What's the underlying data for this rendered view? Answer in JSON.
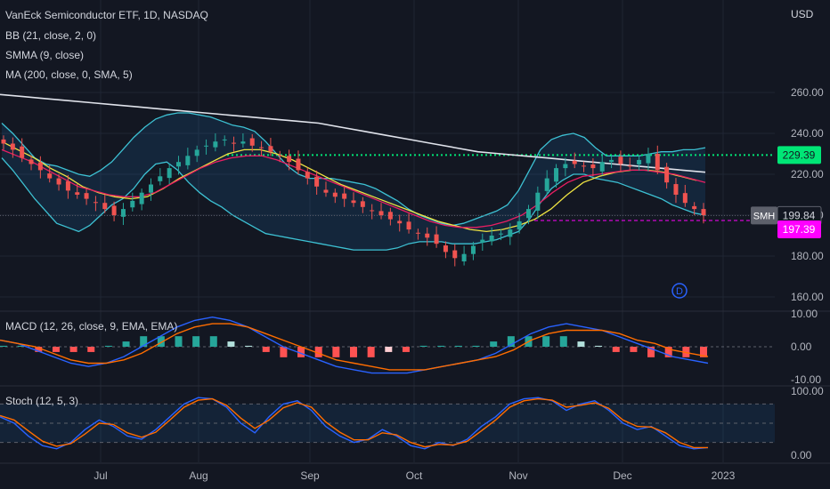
{
  "header": {
    "symbol_title": "VanEck Semiconductor ETF, 1D, NASDAQ",
    "currency": "USD"
  },
  "indicators": {
    "bb": "BB (21, close, 2, 0)",
    "smma": "SMMA (9, close)",
    "ma": "MA (200, close, 0, SMA, 5)",
    "macd": "MACD (12, 26, close, 9, EMA, EMA)",
    "stoch": "Stoch (12, 5, 3)"
  },
  "price_axis": {
    "ticks": [
      "260.00",
      "240.00",
      "220.00",
      "200.00",
      "180.00",
      "160.00"
    ],
    "tick_values": [
      260,
      240,
      220,
      200,
      180,
      160
    ]
  },
  "macd_axis": {
    "ticks": [
      "10.00",
      "0.00",
      "-10.00"
    ],
    "tick_values": [
      10,
      0,
      -10
    ]
  },
  "stoch_axis": {
    "ticks": [
      "100.00",
      "0.00"
    ],
    "tick_values": [
      100,
      0
    ]
  },
  "time_axis": {
    "labels": [
      "Jul",
      "Aug",
      "Sep",
      "Oct",
      "Nov",
      "Dec",
      "2023"
    ]
  },
  "price_labels": {
    "resistance": {
      "text": "229.39",
      "value": 229.39,
      "color": "#00e676"
    },
    "symbol": "SMH",
    "last": {
      "text": "199.84",
      "value": 199.84
    },
    "marker": {
      "text": "197.39",
      "value": 197.39,
      "color": "#ff00ff"
    }
  },
  "dividend_marker": "D",
  "colors": {
    "background": "#131722",
    "up_candle": "#26a69a",
    "down_candle": "#ef5350",
    "bb_band": "#3dc1d3",
    "smma": "#e91e63",
    "ma200": "#e0e3eb",
    "basis": "#f0e442",
    "macd_line": "#2962ff",
    "signal_line": "#ff6d00",
    "stoch_k": "#2962ff",
    "stoch_d": "#ff6d00",
    "resistance": "#00e676",
    "marker": "#ff00ff"
  },
  "chart_data": {
    "type": "candlestick",
    "x_labels": [
      "Jul",
      "Aug",
      "Sep",
      "Oct",
      "Nov",
      "Dec",
      "2023"
    ],
    "price_series": {
      "close": [
        235,
        232,
        228,
        225,
        222,
        218,
        215,
        212,
        210,
        208,
        206,
        203,
        200,
        203,
        207,
        211,
        215,
        219,
        223,
        226,
        229,
        232,
        234,
        236,
        237,
        235,
        236,
        234,
        233,
        231,
        229,
        226,
        222,
        218,
        214,
        211,
        209,
        208,
        206,
        204,
        202,
        200,
        198,
        196,
        193,
        191,
        189,
        186,
        182,
        179,
        181,
        185,
        188,
        190,
        191,
        193,
        197,
        203,
        211,
        218,
        223,
        225,
        225,
        224,
        223,
        226,
        227,
        225,
        224,
        227,
        230,
        222,
        216,
        210,
        206,
        203,
        200
      ],
      "upper_band": [
        245,
        240,
        234,
        228,
        225,
        224,
        222,
        220,
        219,
        222,
        226,
        232,
        238,
        243,
        247,
        249,
        250,
        250,
        249,
        248,
        246,
        244,
        243,
        241,
        236,
        230,
        224,
        220,
        218,
        218,
        218,
        217,
        216,
        215,
        213,
        210,
        207,
        203,
        200,
        198,
        196,
        195,
        196,
        198,
        200,
        202,
        205,
        212,
        222,
        232,
        237,
        239,
        240,
        238,
        233,
        229,
        229,
        229,
        229,
        230,
        231,
        231,
        232,
        232,
        233
      ],
      "lower_band": [
        228,
        222,
        215,
        208,
        202,
        196,
        194,
        192,
        195,
        200,
        205,
        208,
        213,
        220,
        225,
        226,
        222,
        216,
        211,
        207,
        204,
        200,
        197,
        194,
        191,
        190,
        189,
        188,
        187,
        186,
        185,
        184,
        183,
        183,
        183,
        183,
        184,
        186,
        187,
        187,
        187,
        186,
        186,
        186,
        187,
        188,
        190,
        192,
        198,
        206,
        213,
        217,
        220,
        220,
        218,
        217,
        216,
        214,
        212,
        210,
        208,
        205,
        203,
        201,
        200
      ],
      "ma200": [
        259,
        258,
        257,
        256,
        255,
        254,
        253,
        252,
        251,
        250,
        249,
        248,
        247,
        246,
        245,
        243,
        241,
        239,
        237,
        235,
        233,
        231,
        230,
        229,
        228,
        227,
        226,
        225,
        224,
        223,
        222,
        221
      ],
      "smma": [
        232,
        229,
        226,
        222,
        218,
        214,
        212,
        210,
        209,
        209,
        211,
        215,
        219,
        223,
        226,
        228,
        229,
        229,
        227,
        224,
        221,
        218,
        215,
        212,
        209,
        206,
        203,
        200,
        197,
        195,
        194,
        194,
        195,
        197,
        200,
        205,
        211,
        216,
        219,
        220,
        221,
        222,
        222,
        221,
        220,
        218,
        216
      ],
      "basis": [
        236,
        232,
        228,
        223,
        219,
        214,
        211,
        209,
        208,
        209,
        213,
        218,
        222,
        226,
        230,
        232,
        232,
        230,
        227,
        223,
        219,
        215,
        212,
        209,
        206,
        203,
        200,
        197,
        195,
        193,
        192,
        193,
        195,
        198,
        203,
        210,
        216,
        219,
        221,
        222,
        222,
        221,
        219,
        217
      ]
    },
    "resistance_level": 229.39,
    "last_price": 199.84,
    "marker_level": 197.39,
    "macd": {
      "ylim": [
        -10,
        10
      ],
      "macd_line": [
        2,
        1,
        -1,
        -3,
        -5,
        -6,
        -5,
        -3,
        0,
        3,
        6,
        8,
        9,
        8,
        6,
        3,
        0,
        -2,
        -4,
        -6,
        -7,
        -8,
        -8,
        -8,
        -7,
        -6,
        -5,
        -4,
        -2,
        1,
        4,
        6,
        7,
        6,
        5,
        3,
        1,
        -1,
        -3,
        -4,
        -5
      ],
      "signal_line": [
        2,
        1,
        0,
        -2,
        -4,
        -5,
        -5,
        -4,
        -2,
        1,
        4,
        6,
        7,
        7,
        6,
        4,
        2,
        0,
        -2,
        -4,
        -5,
        -6,
        -7,
        -7,
        -7,
        -6,
        -5,
        -4,
        -3,
        -1,
        2,
        4,
        5,
        5,
        5,
        4,
        2,
        1,
        -1,
        -2,
        -3
      ],
      "histogram": [
        0,
        0,
        -1,
        -1,
        -1,
        -1,
        0,
        1,
        2,
        2,
        2,
        2,
        2,
        1,
        0,
        -1,
        -2,
        -2,
        -2,
        -2,
        -2,
        -2,
        -1,
        -1,
        0,
        0,
        0,
        0,
        1,
        2,
        2,
        2,
        2,
        1,
        0,
        -1,
        -1,
        -2,
        -2,
        -2,
        -2
      ]
    },
    "stoch": {
      "ylim": [
        0,
        100
      ],
      "upper_level": 80,
      "middle_level": 50,
      "lower_level": 20,
      "k": [
        60,
        50,
        30,
        15,
        10,
        20,
        40,
        55,
        45,
        30,
        25,
        40,
        60,
        80,
        90,
        88,
        75,
        50,
        35,
        60,
        80,
        85,
        70,
        45,
        30,
        20,
        25,
        40,
        30,
        15,
        10,
        20,
        15,
        25,
        45,
        60,
        80,
        88,
        90,
        85,
        70,
        80,
        85,
        70,
        50,
        40,
        45,
        30,
        15,
        10,
        12
      ],
      "d": [
        62,
        55,
        38,
        22,
        14,
        18,
        33,
        50,
        48,
        35,
        28,
        36,
        55,
        75,
        86,
        88,
        78,
        58,
        42,
        55,
        74,
        82,
        75,
        52,
        36,
        24,
        24,
        35,
        32,
        20,
        13,
        17,
        16,
        22,
        38,
        55,
        75,
        85,
        88,
        86,
        75,
        78,
        82,
        73,
        55,
        45,
        44,
        35,
        20,
        12,
        12
      ]
    }
  }
}
